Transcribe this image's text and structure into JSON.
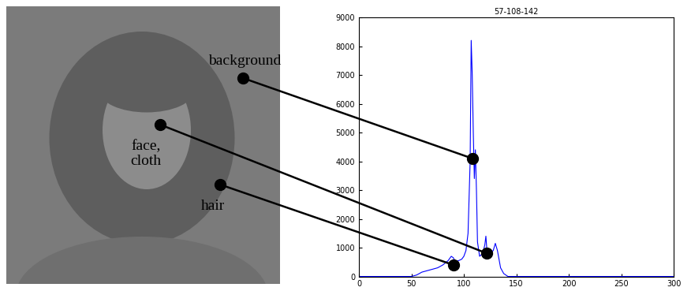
{
  "chart_data": {
    "type": "line",
    "title": "57-108-142",
    "x": [
      0,
      50,
      55,
      60,
      65,
      70,
      75,
      80,
      85,
      88,
      90,
      92,
      95,
      98,
      100,
      102,
      104,
      106,
      107,
      108,
      109,
      110,
      111,
      112,
      113,
      115,
      118,
      120,
      121,
      122,
      125,
      128,
      130,
      132,
      135,
      138,
      142,
      300
    ],
    "values": [
      0,
      0,
      50,
      150,
      200,
      250,
      300,
      400,
      550,
      700,
      650,
      500,
      550,
      600,
      700,
      900,
      1500,
      4000,
      8200,
      7000,
      5000,
      3400,
      4400,
      3000,
      1200,
      700,
      800,
      1100,
      1400,
      900,
      800,
      900,
      1150,
      900,
      300,
      100,
      0,
      0
    ],
    "color": "#0000ff",
    "xlim": [
      0,
      300
    ],
    "xticks": [
      0,
      50,
      100,
      150,
      200,
      250,
      300
    ],
    "ylim": [
      0,
      9000
    ],
    "yticks": [
      0,
      1000,
      2000,
      3000,
      4000,
      5000,
      6000,
      7000,
      8000,
      9000
    ],
    "grid": false,
    "annotations": [
      {
        "text": "background",
        "x": 108,
        "y": 4100
      },
      {
        "text": "face,\ncloth",
        "x": 122,
        "y": 800
      },
      {
        "text": "hair",
        "x": 90,
        "y": 400
      }
    ]
  }
}
